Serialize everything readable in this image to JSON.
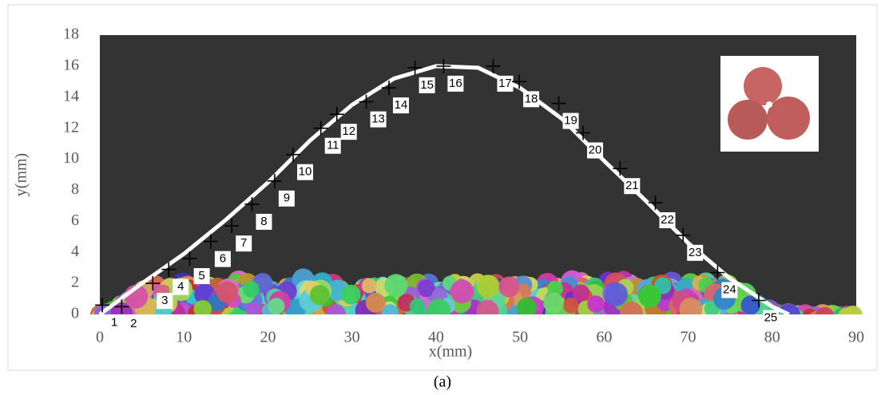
{
  "chart_data": {
    "type": "scatter",
    "xlabel": "x(mm)",
    "ylabel": "y(mm)",
    "caption": "(a)",
    "xlim": [
      0,
      90
    ],
    "xticks": [
      0,
      10,
      20,
      30,
      40,
      50,
      60,
      70,
      80,
      90
    ],
    "ylim": [
      0,
      18
    ],
    "yticks": [
      0,
      2,
      4,
      6,
      8,
      10,
      12,
      14,
      16,
      18
    ],
    "marker_color": "#000000",
    "x": [
      0.3,
      2.6,
      6.3,
      8.2,
      10.7,
      13.2,
      15.7,
      18.1,
      20.8,
      23.0,
      26.3,
      28.2,
      31.7,
      34.4,
      37.5,
      40.9,
      46.8,
      49.9,
      54.6,
      57.5,
      61.9,
      66.1,
      69.4,
      73.5,
      78.4
    ],
    "values": [
      0.6,
      0.5,
      2.0,
      2.9,
      3.6,
      4.7,
      5.7,
      7.1,
      8.6,
      10.3,
      12.0,
      12.9,
      13.7,
      14.6,
      15.9,
      16.0,
      16.0,
      15.0,
      13.6,
      11.7,
      9.4,
      7.2,
      5.1,
      2.7,
      0.9
    ],
    "point_labels": [
      "1",
      "2",
      "3",
      "4",
      "5",
      "6",
      "7",
      "8",
      "9",
      "10",
      "11",
      "12",
      "13",
      "14",
      "15",
      "16",
      "17",
      "18",
      "19",
      "20",
      "21",
      "22",
      "23",
      "24",
      "25"
    ],
    "fit": {
      "color": "#ffffff",
      "x": [
        0,
        5,
        10,
        15,
        20,
        25,
        30,
        35,
        40,
        45,
        50,
        55,
        60,
        65,
        70,
        75,
        80,
        82
      ],
      "values": [
        0,
        2.0,
        3.9,
        6.1,
        8.5,
        11.2,
        13.5,
        15.2,
        16.0,
        15.9,
        14.6,
        12.6,
        9.9,
        7.3,
        4.6,
        2.3,
        0.5,
        0
      ]
    }
  }
}
